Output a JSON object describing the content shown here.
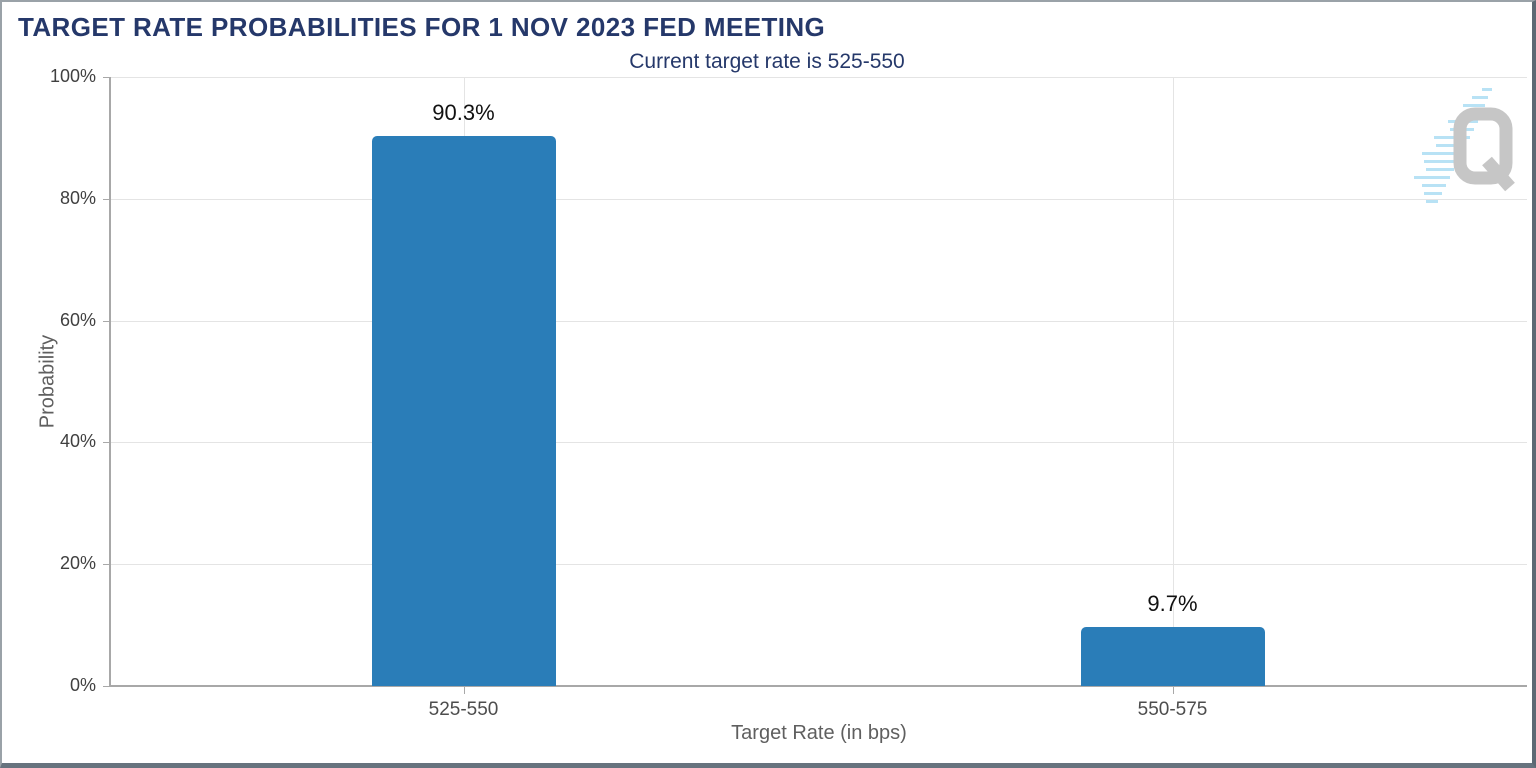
{
  "header": {
    "title": "TARGET RATE PROBABILITIES FOR 1 NOV 2023 FED MEETING",
    "subtitle": "Current target rate is 525-550"
  },
  "logo": {
    "letter": "Q"
  },
  "chart_data": {
    "type": "bar",
    "title": "TARGET RATE PROBABILITIES FOR 1 NOV 2023 FED MEETING",
    "subtitle": "Current target rate is 525-550",
    "categories": [
      "525-550",
      "550-575"
    ],
    "values": [
      90.3,
      9.7
    ],
    "value_labels": [
      "90.3%",
      "9.7%"
    ],
    "xlabel": "Target Rate (in bps)",
    "ylabel": "Probability",
    "ylim": [
      0,
      100
    ],
    "ytick_values": [
      0,
      20,
      40,
      60,
      80,
      100
    ],
    "ytick_labels": [
      "0%",
      "20%",
      "40%",
      "60%",
      "80%",
      "100%"
    ],
    "grid": true,
    "legend": "none",
    "bar_color": "#2a7db8",
    "title_color": "#25386a",
    "accent_blue": "#b8e2f5",
    "logo_gray": "#c6c6c6"
  }
}
